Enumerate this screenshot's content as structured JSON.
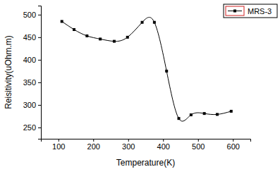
{
  "chart_data": {
    "type": "line",
    "x_label": "Temperature(K)",
    "y_label": "Reisitivity(uOhm.m)",
    "x": [
      110,
      145,
      182,
      220,
      260,
      298,
      340,
      375,
      410,
      445,
      480,
      518,
      555,
      595
    ],
    "series": [
      {
        "name": "MRS-3",
        "color": "#000000",
        "marker": "square",
        "line_style": "solid",
        "values": [
          485,
          467,
          453,
          446,
          441,
          450,
          483,
          483,
          375,
          270,
          278,
          281,
          279,
          286
        ]
      }
    ],
    "xlim": [
      50,
      650
    ],
    "xticks": [
      100,
      200,
      300,
      400,
      500,
      600
    ],
    "ylim": [
      225,
      520
    ],
    "yticks": [
      250,
      300,
      350,
      400,
      450,
      500
    ],
    "legend": "upper right",
    "grid": false
  }
}
